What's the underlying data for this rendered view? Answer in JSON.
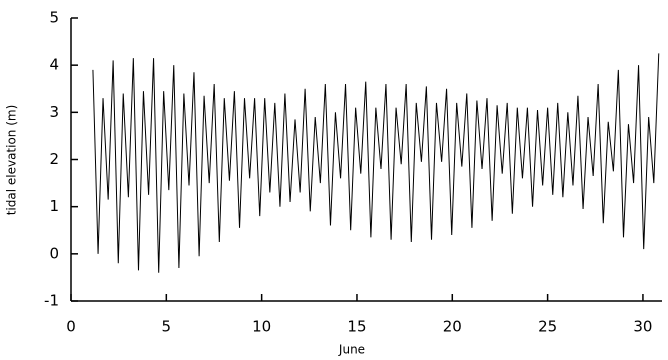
{
  "chart_data": {
    "type": "line",
    "x_label": "June",
    "y_label": "tidal elevation (m)",
    "xlim": [
      0,
      31
    ],
    "ylim": [
      -1,
      5
    ],
    "xticks": [
      0,
      5,
      10,
      15,
      20,
      25,
      30
    ],
    "yticks": [
      -1,
      0,
      1,
      2,
      3,
      4,
      5
    ],
    "grid": false,
    "series": [
      {
        "name": "tidal elevation",
        "color": "#000000",
        "x": [
          1.15,
          1.42,
          1.68,
          1.95,
          2.21,
          2.48,
          2.74,
          3.01,
          3.27,
          3.54,
          3.8,
          4.07,
          4.33,
          4.6,
          4.86,
          5.13,
          5.39,
          5.66,
          5.92,
          6.19,
          6.45,
          6.72,
          6.98,
          7.25,
          7.51,
          7.78,
          8.04,
          8.31,
          8.57,
          8.84,
          9.1,
          9.37,
          9.63,
          9.9,
          10.16,
          10.43,
          10.69,
          10.96,
          11.22,
          11.49,
          11.75,
          12.02,
          12.28,
          12.55,
          12.81,
          13.08,
          13.34,
          13.61,
          13.87,
          14.14,
          14.4,
          14.67,
          14.93,
          15.2,
          15.46,
          15.73,
          15.99,
          16.26,
          16.52,
          16.79,
          17.05,
          17.32,
          17.58,
          17.85,
          18.11,
          18.38,
          18.64,
          18.91,
          19.17,
          19.44,
          19.7,
          19.97,
          20.23,
          20.5,
          20.76,
          21.03,
          21.29,
          21.56,
          21.82,
          22.09,
          22.35,
          22.62,
          22.88,
          23.15,
          23.41,
          23.68,
          23.94,
          24.21,
          24.47,
          24.74,
          25.0,
          25.27,
          25.53,
          25.8,
          26.06,
          26.33,
          26.59,
          26.86,
          27.12,
          27.39,
          27.65,
          27.92,
          28.18,
          28.45,
          28.71,
          28.98,
          29.24,
          29.51,
          29.77,
          30.04,
          30.3,
          30.57,
          30.83
        ],
        "values": [
          3.9,
          0.0,
          3.3,
          1.15,
          4.1,
          -0.2,
          3.4,
          1.2,
          4.15,
          -0.35,
          3.45,
          1.25,
          4.15,
          -0.4,
          3.45,
          1.35,
          4.0,
          -0.3,
          3.4,
          1.45,
          3.85,
          -0.05,
          3.35,
          1.5,
          3.6,
          0.25,
          3.3,
          1.55,
          3.45,
          0.55,
          3.3,
          1.6,
          3.3,
          0.8,
          3.3,
          1.3,
          3.2,
          1.0,
          3.4,
          1.1,
          2.85,
          1.3,
          3.5,
          0.9,
          2.9,
          1.5,
          3.6,
          0.6,
          3.0,
          1.6,
          3.6,
          0.5,
          3.1,
          1.7,
          3.65,
          0.35,
          3.1,
          1.8,
          3.6,
          0.3,
          3.1,
          1.9,
          3.6,
          0.25,
          3.2,
          1.95,
          3.55,
          0.3,
          3.2,
          1.95,
          3.5,
          0.4,
          3.2,
          1.85,
          3.4,
          0.55,
          3.25,
          1.8,
          3.3,
          0.7,
          3.15,
          1.7,
          3.2,
          0.85,
          3.1,
          1.6,
          3.1,
          1.0,
          3.05,
          1.45,
          3.1,
          1.25,
          3.2,
          1.2,
          3.0,
          1.45,
          3.35,
          0.95,
          2.9,
          1.65,
          3.6,
          0.65,
          2.8,
          1.75,
          3.9,
          0.35,
          2.75,
          1.5,
          4.0,
          0.1,
          2.9,
          1.5,
          4.25
        ]
      }
    ]
  }
}
